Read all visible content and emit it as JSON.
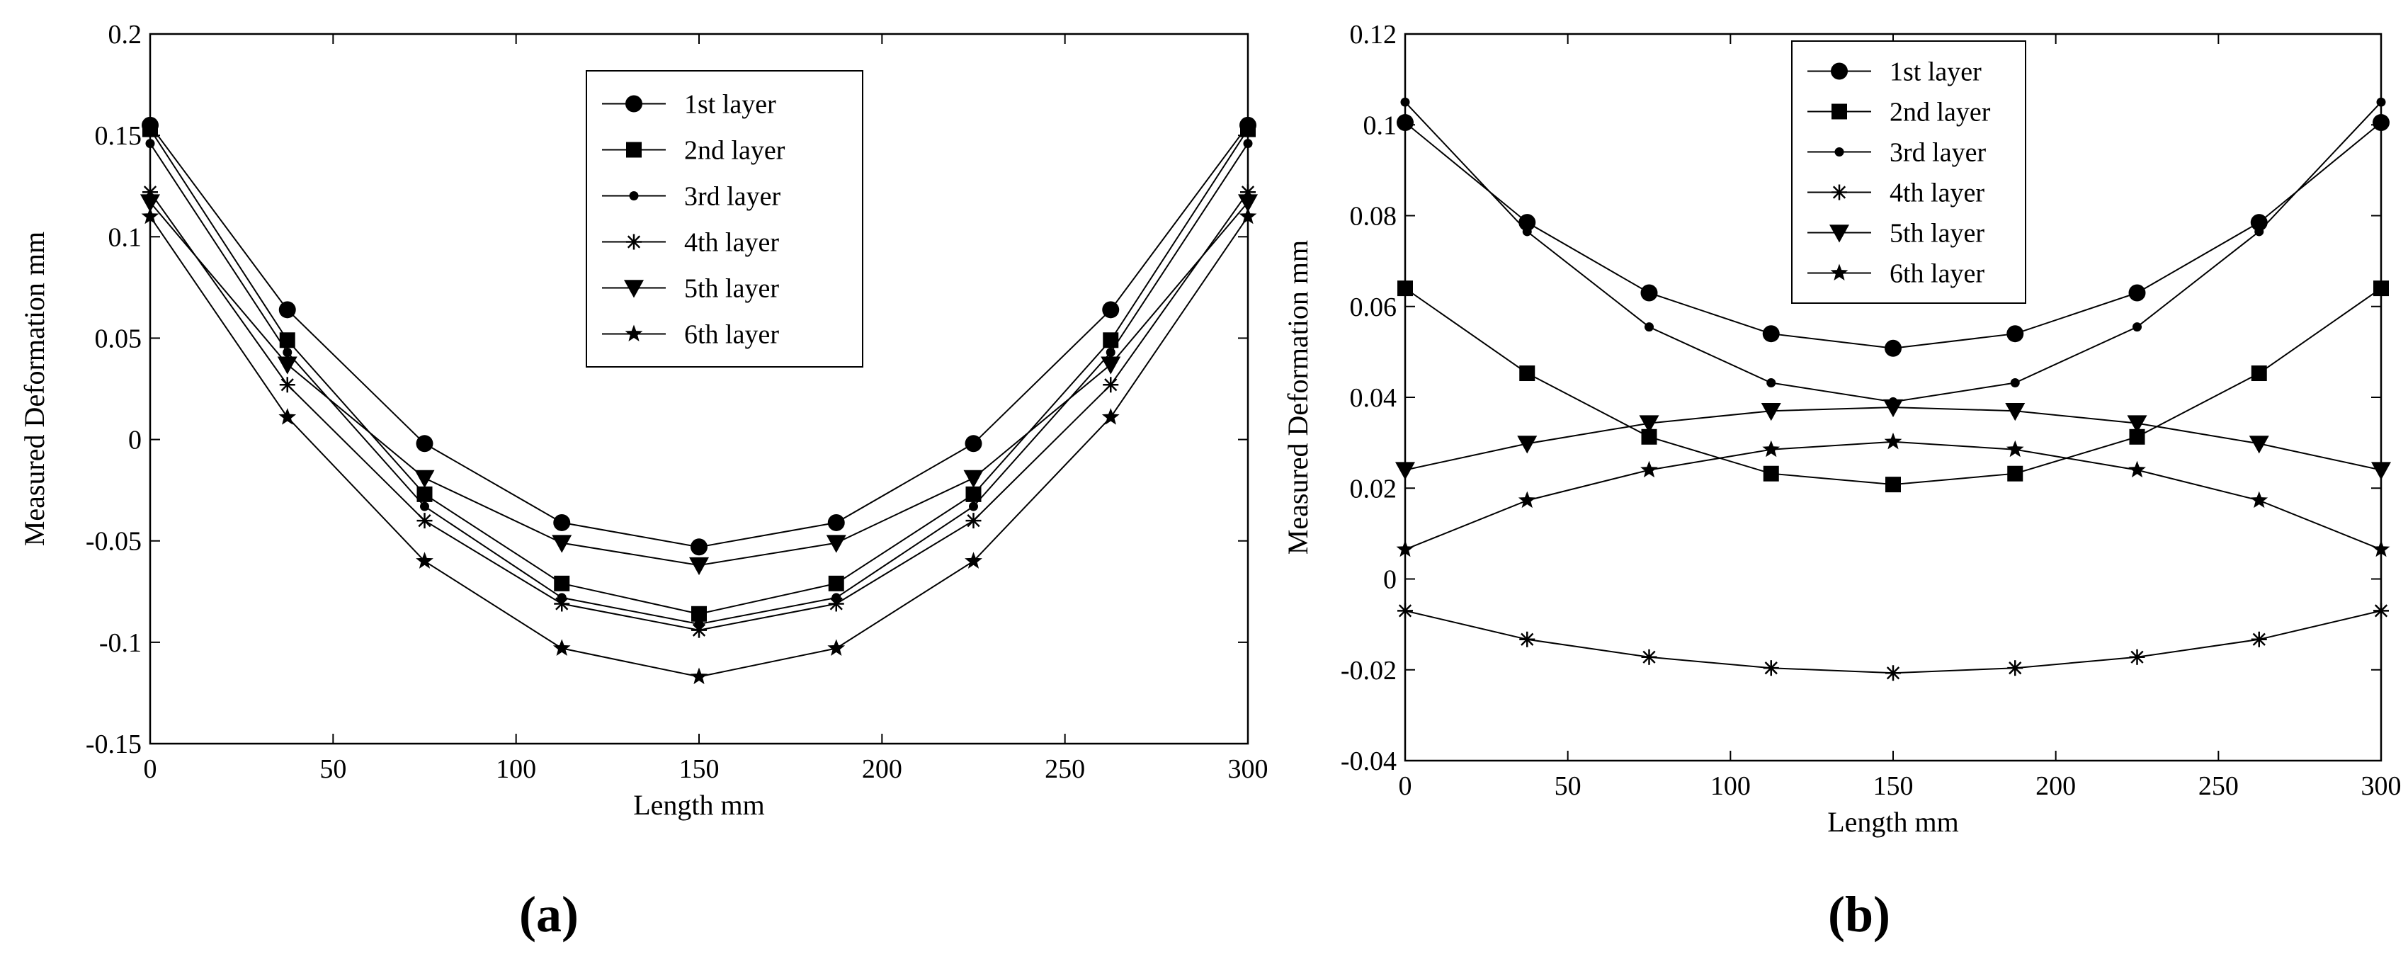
{
  "figure": {
    "panels": [
      "(a)",
      "(b)"
    ]
  },
  "chart_data": [
    {
      "type": "line",
      "panel": "(a)",
      "xlabel": "Length mm",
      "ylabel": "Measured Deformation  mm",
      "xlim": [
        0,
        300
      ],
      "ylim": [
        -0.15,
        0.2
      ],
      "xticks": [
        0,
        50,
        100,
        150,
        200,
        250,
        300
      ],
      "yticks": [
        -0.15,
        -0.1,
        -0.05,
        0,
        0.05,
        0.1,
        0.15,
        0.2
      ],
      "ytick_labels": [
        "-0.15",
        "-0.1",
        "-0.05",
        "0",
        "0.05",
        "0.1",
        "0.15",
        "0.2"
      ],
      "grid": false,
      "legend_position": "top-center",
      "x": [
        0,
        37.5,
        75,
        112.5,
        150,
        187.5,
        225,
        262.5,
        300
      ],
      "series": [
        {
          "name": "1st layer",
          "marker": "circle",
          "values": [
            0.155,
            0.064,
            -0.002,
            -0.041,
            -0.053,
            -0.041,
            -0.002,
            0.064,
            0.155
          ]
        },
        {
          "name": "2nd layer",
          "marker": "square",
          "values": [
            0.153,
            0.049,
            -0.027,
            -0.071,
            -0.086,
            -0.071,
            -0.027,
            0.049,
            0.153
          ]
        },
        {
          "name": "3rd layer",
          "marker": "dot",
          "values": [
            0.146,
            0.043,
            -0.033,
            -0.078,
            -0.091,
            -0.078,
            -0.033,
            0.043,
            0.146
          ]
        },
        {
          "name": "4th layer",
          "marker": "asterisk",
          "values": [
            0.122,
            0.027,
            -0.04,
            -0.081,
            -0.094,
            -0.081,
            -0.04,
            0.027,
            0.122
          ]
        },
        {
          "name": "5th layer",
          "marker": "triangle-down",
          "values": [
            0.117,
            0.037,
            -0.019,
            -0.051,
            -0.062,
            -0.051,
            -0.019,
            0.037,
            0.117
          ]
        },
        {
          "name": "6th layer",
          "marker": "star",
          "values": [
            0.11,
            0.011,
            -0.06,
            -0.103,
            -0.117,
            -0.103,
            -0.06,
            0.011,
            0.11
          ]
        }
      ]
    },
    {
      "type": "line",
      "panel": "(b)",
      "xlabel": "Length mm",
      "ylabel": "Measured Deformation  mm",
      "xlim": [
        0,
        300
      ],
      "ylim": [
        -0.04,
        0.12
      ],
      "xticks": [
        0,
        50,
        100,
        150,
        200,
        250,
        300
      ],
      "yticks": [
        -0.04,
        -0.02,
        0,
        0.02,
        0.04,
        0.06,
        0.08,
        0.1,
        0.12
      ],
      "ytick_labels": [
        "-0.04",
        "-0.02",
        "0",
        "0.02",
        "0.04",
        "0.06",
        "0.08",
        "0.1",
        "0.12"
      ],
      "grid": false,
      "legend_position": "top-left",
      "x": [
        0,
        37.5,
        75,
        112.5,
        150,
        187.5,
        225,
        262.5,
        300
      ],
      "series": [
        {
          "name": "1st layer",
          "marker": "circle",
          "values": [
            0.1005,
            0.0785,
            0.063,
            0.054,
            0.0508,
            0.054,
            0.063,
            0.0785,
            0.1005
          ]
        },
        {
          "name": "2nd layer",
          "marker": "square",
          "values": [
            0.064,
            0.0453,
            0.0313,
            0.0232,
            0.0208,
            0.0232,
            0.0313,
            0.0453,
            0.064
          ]
        },
        {
          "name": "3rd layer",
          "marker": "dot",
          "values": [
            0.105,
            0.0765,
            0.0555,
            0.0432,
            0.039,
            0.0432,
            0.0555,
            0.0765,
            0.105
          ]
        },
        {
          "name": "4th layer",
          "marker": "asterisk",
          "values": [
            -0.007,
            -0.0133,
            -0.0172,
            -0.0196,
            -0.0207,
            -0.0196,
            -0.0172,
            -0.0133,
            -0.007
          ]
        },
        {
          "name": "5th layer",
          "marker": "triangle-down",
          "values": [
            0.024,
            0.0298,
            0.0343,
            0.037,
            0.0378,
            0.037,
            0.0343,
            0.0298,
            0.024
          ]
        },
        {
          "name": "6th layer",
          "marker": "star",
          "values": [
            0.0065,
            0.0173,
            0.024,
            0.0285,
            0.0302,
            0.0285,
            0.024,
            0.0173,
            0.0065
          ]
        }
      ]
    }
  ]
}
